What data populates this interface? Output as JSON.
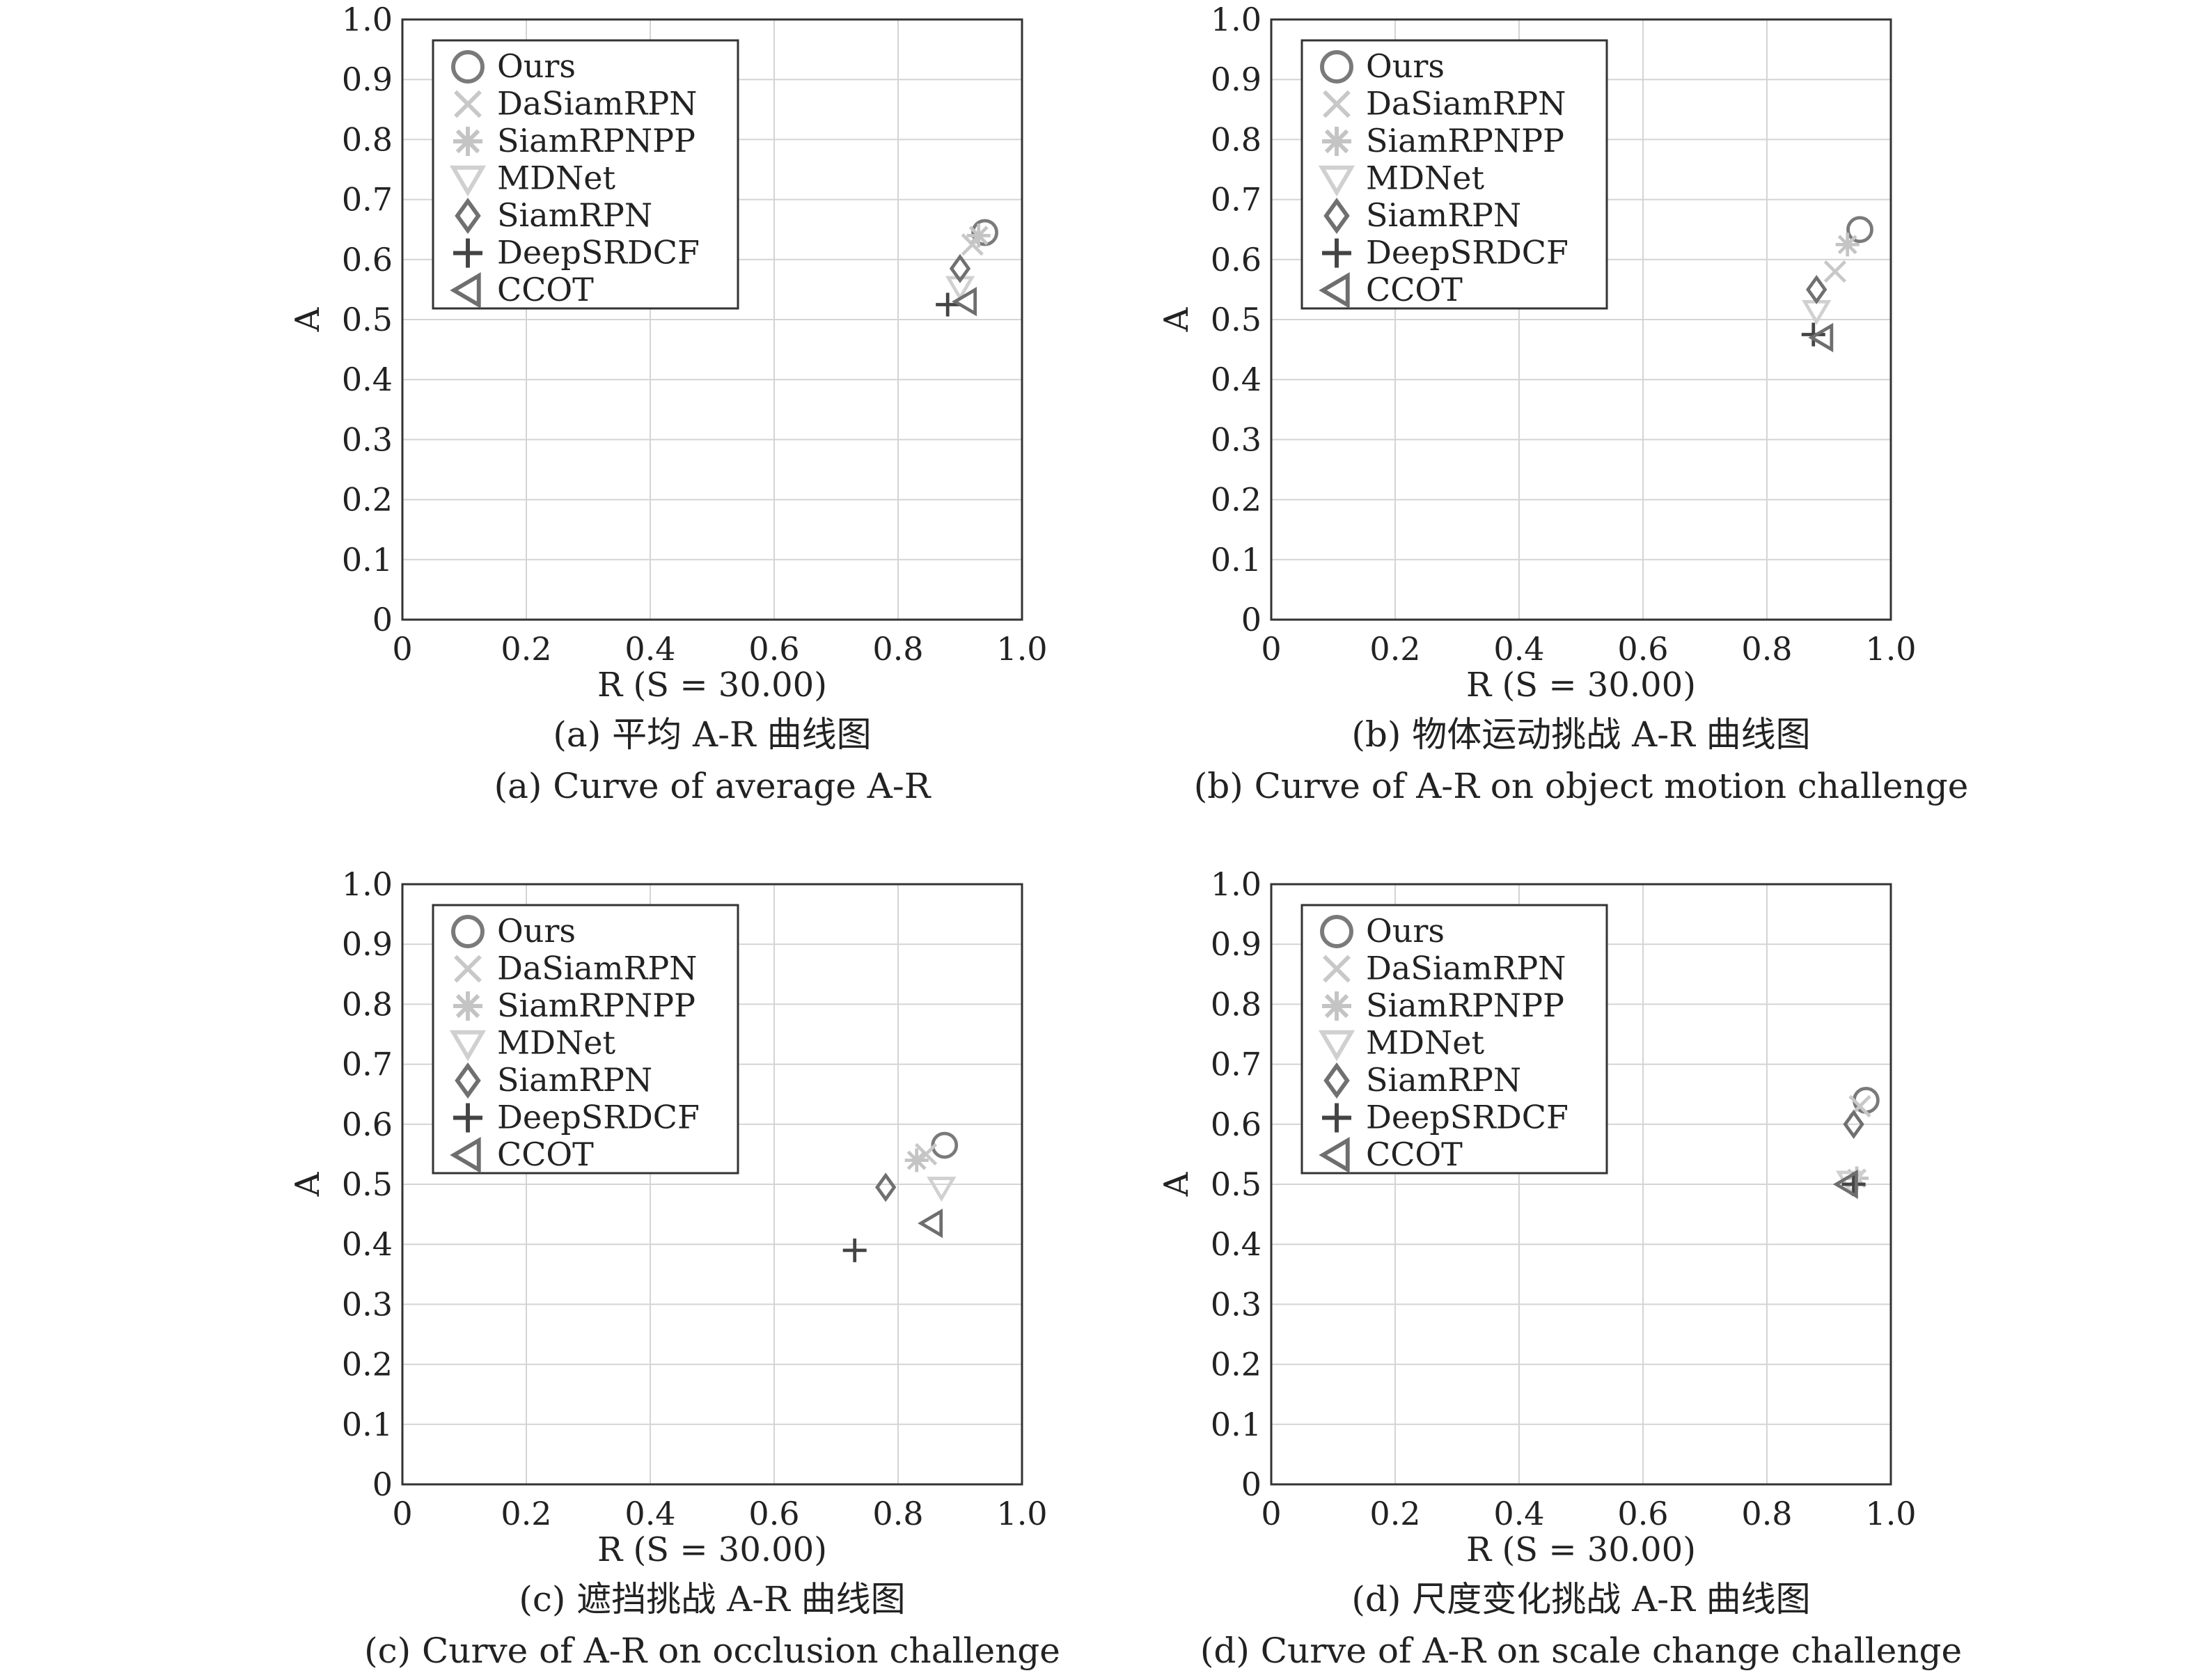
{
  "chart_data": [
    {
      "type": "scatter",
      "xlabel": "R (S = 30.00)",
      "ylabel": "A",
      "xlim": [
        0,
        1.0
      ],
      "ylim": [
        0,
        1.0
      ],
      "xticks": [
        "0",
        "0.2",
        "0.4",
        "0.6",
        "0.8",
        "1.0"
      ],
      "yticks": [
        "0",
        "0.1",
        "0.2",
        "0.3",
        "0.4",
        "0.5",
        "0.6",
        "0.7",
        "0.8",
        "0.9",
        "1.0"
      ],
      "grid": true,
      "legend": "top-left",
      "caption_cn": "(a) 平均 A-R 曲线图",
      "caption_en": "(a) Curve of average A-R",
      "series": [
        {
          "name": "Ours",
          "x": 0.94,
          "y": 0.645
        },
        {
          "name": "DaSiamRPN",
          "x": 0.92,
          "y": 0.625
        },
        {
          "name": "SiamRPNPP",
          "x": 0.93,
          "y": 0.64
        },
        {
          "name": "MDNet",
          "x": 0.9,
          "y": 0.555
        },
        {
          "name": "SiamRPN",
          "x": 0.9,
          "y": 0.585
        },
        {
          "name": "DeepSRDCF",
          "x": 0.88,
          "y": 0.525
        },
        {
          "name": "CCOT",
          "x": 0.91,
          "y": 0.53
        }
      ]
    },
    {
      "type": "scatter",
      "xlabel": "R (S = 30.00)",
      "ylabel": "A",
      "xlim": [
        0,
        1.0
      ],
      "ylim": [
        0,
        1.0
      ],
      "xticks": [
        "0",
        "0.2",
        "0.4",
        "0.6",
        "0.8",
        "1.0"
      ],
      "yticks": [
        "0",
        "0.1",
        "0.2",
        "0.3",
        "0.4",
        "0.5",
        "0.6",
        "0.7",
        "0.8",
        "0.9",
        "1.0"
      ],
      "grid": true,
      "legend": "top-left",
      "caption_cn": "(b) 物体运动挑战 A-R 曲线图",
      "caption_en": "(b) Curve of A-R on object motion challenge",
      "series": [
        {
          "name": "Ours",
          "x": 0.95,
          "y": 0.65
        },
        {
          "name": "DaSiamRPN",
          "x": 0.91,
          "y": 0.58
        },
        {
          "name": "SiamRPNPP",
          "x": 0.93,
          "y": 0.625
        },
        {
          "name": "MDNet",
          "x": 0.88,
          "y": 0.515
        },
        {
          "name": "SiamRPN",
          "x": 0.88,
          "y": 0.55
        },
        {
          "name": "DeepSRDCF",
          "x": 0.875,
          "y": 0.475
        },
        {
          "name": "CCOT",
          "x": 0.89,
          "y": 0.47
        }
      ]
    },
    {
      "type": "scatter",
      "xlabel": "R (S = 30.00)",
      "ylabel": "A",
      "xlim": [
        0,
        1.0
      ],
      "ylim": [
        0,
        1.0
      ],
      "xticks": [
        "0",
        "0.2",
        "0.4",
        "0.6",
        "0.8",
        "1.0"
      ],
      "yticks": [
        "0",
        "0.1",
        "0.2",
        "0.3",
        "0.4",
        "0.5",
        "0.6",
        "0.7",
        "0.8",
        "0.9",
        "1.0"
      ],
      "grid": true,
      "legend": "top-left",
      "caption_cn": "(c) 遮挡挑战 A-R 曲线图",
      "caption_en": "(c) Curve of A-R on occlusion challenge",
      "series": [
        {
          "name": "Ours",
          "x": 0.875,
          "y": 0.565
        },
        {
          "name": "DaSiamRPN",
          "x": 0.845,
          "y": 0.55
        },
        {
          "name": "SiamRPNPP",
          "x": 0.83,
          "y": 0.54
        },
        {
          "name": "MDNet",
          "x": 0.87,
          "y": 0.495
        },
        {
          "name": "SiamRPN",
          "x": 0.78,
          "y": 0.495
        },
        {
          "name": "DeepSRDCF",
          "x": 0.73,
          "y": 0.39
        },
        {
          "name": "CCOT",
          "x": 0.855,
          "y": 0.435
        }
      ]
    },
    {
      "type": "scatter",
      "xlabel": "R (S = 30.00)",
      "ylabel": "A",
      "xlim": [
        0,
        1.0
      ],
      "ylim": [
        0,
        1.0
      ],
      "xticks": [
        "0",
        "0.2",
        "0.4",
        "0.6",
        "0.8",
        "1.0"
      ],
      "yticks": [
        "0",
        "0.1",
        "0.2",
        "0.3",
        "0.4",
        "0.5",
        "0.6",
        "0.7",
        "0.8",
        "0.9",
        "1.0"
      ],
      "grid": true,
      "legend": "top-left",
      "caption_cn": "(d) 尺度变化挑战 A-R 曲线图",
      "caption_en": "(d) Curve of A-R on scale change challenge",
      "series": [
        {
          "name": "Ours",
          "x": 0.96,
          "y": 0.64
        },
        {
          "name": "DaSiamRPN",
          "x": 0.95,
          "y": 0.63
        },
        {
          "name": "SiamRPNPP",
          "x": 0.945,
          "y": 0.51
        },
        {
          "name": "MDNet",
          "x": 0.935,
          "y": 0.505
        },
        {
          "name": "SiamRPN",
          "x": 0.94,
          "y": 0.6
        },
        {
          "name": "DeepSRDCF",
          "x": 0.94,
          "y": 0.5
        },
        {
          "name": "CCOT",
          "x": 0.93,
          "y": 0.5
        }
      ]
    }
  ],
  "markers": [
    {
      "name": "Ours",
      "shape": "circle",
      "color": "#7a7a7a"
    },
    {
      "name": "DaSiamRPN",
      "shape": "cross",
      "color": "#c8c8c8"
    },
    {
      "name": "SiamRPNPP",
      "shape": "asterisk",
      "color": "#c4c4c4"
    },
    {
      "name": "MDNet",
      "shape": "triangle-down",
      "color": "#d0d0d0"
    },
    {
      "name": "SiamRPN",
      "shape": "diamond",
      "color": "#707070"
    },
    {
      "name": "DeepSRDCF",
      "shape": "plus",
      "color": "#444444"
    },
    {
      "name": "CCOT",
      "shape": "triangle-left",
      "color": "#6e6e6e"
    }
  ]
}
